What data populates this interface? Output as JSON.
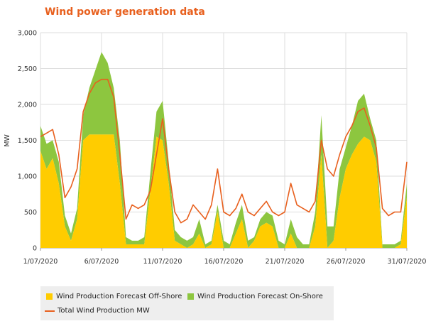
{
  "chart_data": {
    "type": "area",
    "title": "Wind power generation data",
    "xlabel": "",
    "ylabel": "MW",
    "ylim": [
      0,
      3000
    ],
    "yticks": [
      "0",
      "500",
      "1,000",
      "1,500",
      "2,000",
      "2,500",
      "3,000"
    ],
    "xlim": [
      "2020-07-01",
      "2020-07-31"
    ],
    "xticks": [
      "1/07/2020",
      "6/07/2020",
      "11/07/2020",
      "16/07/2020",
      "21/07/2020",
      "26/07/2020",
      "31/07/2020"
    ],
    "grid": true,
    "legend_position": "bottom",
    "x": [
      "2020-07-01",
      "2020-07-01 12:00",
      "2020-07-02",
      "2020-07-02 12:00",
      "2020-07-03",
      "2020-07-03 12:00",
      "2020-07-04",
      "2020-07-04 12:00",
      "2020-07-05",
      "2020-07-05 12:00",
      "2020-07-06",
      "2020-07-06 12:00",
      "2020-07-07",
      "2020-07-07 12:00",
      "2020-07-08",
      "2020-07-08 12:00",
      "2020-07-09",
      "2020-07-09 12:00",
      "2020-07-10",
      "2020-07-10 12:00",
      "2020-07-11",
      "2020-07-11 12:00",
      "2020-07-12",
      "2020-07-12 12:00",
      "2020-07-13",
      "2020-07-13 12:00",
      "2020-07-14",
      "2020-07-14 12:00",
      "2020-07-15",
      "2020-07-15 12:00",
      "2020-07-16",
      "2020-07-16 12:00",
      "2020-07-17",
      "2020-07-17 12:00",
      "2020-07-18",
      "2020-07-18 12:00",
      "2020-07-19",
      "2020-07-19 12:00",
      "2020-07-20",
      "2020-07-20 12:00",
      "2020-07-21",
      "2020-07-21 12:00",
      "2020-07-22",
      "2020-07-22 12:00",
      "2020-07-23",
      "2020-07-23 12:00",
      "2020-07-24",
      "2020-07-24 12:00",
      "2020-07-25",
      "2020-07-25 12:00",
      "2020-07-26",
      "2020-07-26 12:00",
      "2020-07-27",
      "2020-07-27 12:00",
      "2020-07-28",
      "2020-07-28 12:00",
      "2020-07-29",
      "2020-07-29 12:00",
      "2020-07-30",
      "2020-07-30 12:00",
      "2020-07-31"
    ],
    "series": [
      {
        "name": "Wind Production Forecast Off-Shore",
        "color": "#ffcc00",
        "values": [
          1350,
          1100,
          1250,
          900,
          300,
          100,
          400,
          1500,
          1580,
          1580,
          1580,
          1580,
          1580,
          900,
          50,
          50,
          50,
          50,
          800,
          1550,
          1500,
          900,
          100,
          50,
          0,
          50,
          200,
          0,
          50,
          500,
          0,
          0,
          200,
          400,
          0,
          100,
          300,
          350,
          300,
          0,
          0,
          200,
          0,
          0,
          0,
          300,
          1300,
          0,
          100,
          700,
          1100,
          1300,
          1450,
          1550,
          1500,
          1200,
          0,
          0,
          0,
          50,
          700
        ]
      },
      {
        "name": "Wind Production Forecast On-Shore",
        "color": "#8dc63f",
        "values": [
          350,
          350,
          250,
          300,
          150,
          100,
          150,
          350,
          650,
          900,
          1150,
          1000,
          650,
          600,
          100,
          50,
          50,
          100,
          250,
          350,
          550,
          300,
          150,
          100,
          100,
          100,
          200,
          50,
          50,
          100,
          100,
          50,
          150,
          200,
          100,
          50,
          100,
          150,
          150,
          100,
          50,
          200,
          150,
          50,
          50,
          200,
          550,
          300,
          200,
          400,
          300,
          400,
          600,
          600,
          300,
          300,
          50,
          50,
          50,
          50,
          200
        ]
      },
      {
        "name": "Total Wind Production MW",
        "color": "#e8601e",
        "values": [
          1550,
          1600,
          1650,
          1300,
          700,
          850,
          1100,
          1900,
          2150,
          2300,
          2350,
          2350,
          2100,
          1300,
          400,
          600,
          550,
          600,
          800,
          1300,
          1800,
          1100,
          500,
          350,
          400,
          600,
          500,
          400,
          600,
          1100,
          500,
          450,
          550,
          750,
          500,
          450,
          550,
          650,
          500,
          450,
          500,
          900,
          600,
          550,
          500,
          650,
          1500,
          1100,
          1000,
          1300,
          1550,
          1700,
          1900,
          1950,
          1700,
          1400,
          550,
          450,
          500,
          500,
          1200
        ]
      }
    ]
  },
  "legend": {
    "offshore": "Wind Production Forecast Off-Shore",
    "onshore": "Wind Production Forecast On-Shore",
    "total": "Total Wind Production MW"
  }
}
